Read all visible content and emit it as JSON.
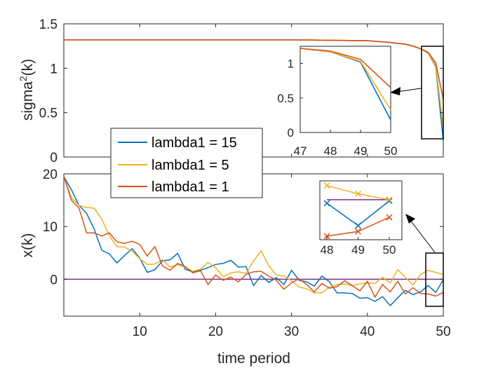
{
  "chart_data": [
    {
      "type": "line",
      "id": "top",
      "xlim": [
        0,
        50
      ],
      "ylim": [
        0,
        1.5
      ],
      "yticks": [
        0,
        0.5,
        1,
        1.5
      ],
      "ytick_labels": [
        "0",
        "0.5",
        "1",
        "1.5"
      ],
      "ylabel_base": "sigma",
      "ylabel_sup": "2",
      "ylabel_rest": "(k)",
      "series": [
        {
          "name": "lambda1 = 15",
          "color": "#0072BD",
          "x": [
            0,
            30,
            40,
            43,
            45,
            46,
            47,
            48,
            49,
            50
          ],
          "y": [
            1.32,
            1.32,
            1.31,
            1.29,
            1.27,
            1.25,
            1.22,
            1.17,
            1.02,
            0.18
          ]
        },
        {
          "name": "lambda1 = 5",
          "color": "#EDB120",
          "x": [
            0,
            30,
            40,
            43,
            45,
            46,
            47,
            48,
            49,
            50
          ],
          "y": [
            1.32,
            1.32,
            1.31,
            1.29,
            1.27,
            1.25,
            1.22,
            1.17,
            1.03,
            0.33
          ]
        },
        {
          "name": "lambda1 = 1",
          "color": "#D95319",
          "x": [
            0,
            30,
            40,
            43,
            45,
            46,
            47,
            48,
            49,
            50
          ],
          "y": [
            1.32,
            1.32,
            1.31,
            1.29,
            1.27,
            1.25,
            1.22,
            1.18,
            1.06,
            0.65
          ]
        }
      ],
      "inset": {
        "xlim": [
          47,
          50
        ],
        "ylim": [
          0,
          1.25
        ],
        "xticks": [
          47,
          48,
          49,
          50
        ],
        "xtick_labels": [
          "47",
          "48",
          "49",
          "50"
        ],
        "yticks": [
          0,
          0.5,
          1
        ],
        "ytick_labels": [
          "0",
          "0.5",
          "1"
        ]
      }
    },
    {
      "type": "line",
      "id": "bottom",
      "xlim": [
        0,
        50
      ],
      "ylim": [
        -7,
        20
      ],
      "xticks": [
        10,
        20,
        30,
        40,
        50
      ],
      "xtick_labels": [
        "10",
        "20",
        "30",
        "40",
        "50"
      ],
      "yticks": [
        0,
        10,
        20
      ],
      "ytick_labels": [
        "0",
        "10",
        "20"
      ],
      "ylabel": "x(k)",
      "xlabel": "time period",
      "reference": {
        "color": "#7E2F8E",
        "y": 0
      },
      "series": [
        {
          "name": "lambda1 = 15",
          "color": "#0072BD",
          "x": [
            0,
            1,
            2,
            3,
            4,
            5,
            6,
            7,
            8,
            9,
            10,
            11,
            12,
            13,
            14,
            15,
            16,
            17,
            18,
            19,
            20,
            21,
            22,
            23,
            24,
            25,
            26,
            27,
            28,
            29,
            30,
            31,
            32,
            33,
            34,
            35,
            36,
            37,
            38,
            39,
            40,
            41,
            42,
            43,
            44,
            45,
            46,
            47,
            48,
            49,
            50
          ],
          "y": [
            19.5,
            17,
            14,
            12.5,
            9.5,
            5.5,
            4.8,
            3.1,
            4.5,
            5.8,
            4,
            1.3,
            1.8,
            3.5,
            3.7,
            4.9,
            1.9,
            1.4,
            1.7,
            2.2,
            2.8,
            3,
            3.6,
            2.3,
            2.4,
            -1.2,
            0.7,
            -0.6,
            0.3,
            -1,
            1.7,
            -0.2,
            -0.5,
            -1.3,
            0.6,
            -0.5,
            -2.6,
            -2.6,
            -2.7,
            -3.6,
            -3.5,
            -4.2,
            -3.3,
            -5,
            -3.5,
            -2.1,
            -2.9,
            -2.4,
            -1.2,
            -2.5,
            -0.1
          ]
        },
        {
          "name": "lambda1 = 5",
          "color": "#EDB120",
          "x": [
            0,
            1,
            2,
            3,
            4,
            5,
            6,
            7,
            8,
            9,
            10,
            11,
            12,
            13,
            14,
            15,
            16,
            17,
            18,
            19,
            20,
            21,
            22,
            23,
            24,
            25,
            26,
            27,
            28,
            29,
            30,
            31,
            32,
            33,
            34,
            35,
            36,
            37,
            38,
            39,
            40,
            41,
            42,
            43,
            44,
            45,
            46,
            47,
            48,
            49,
            50
          ],
          "y": [
            19.5,
            15.5,
            14,
            13.6,
            13.5,
            11.4,
            8.3,
            6.2,
            6.1,
            5.3,
            3.9,
            2.8,
            2.9,
            3.7,
            2.3,
            2.8,
            2.3,
            1.5,
            1.9,
            3.2,
            2.2,
            0.5,
            1.2,
            1.4,
            1.1,
            3.5,
            5.4,
            2.6,
            0.8,
            0.6,
            -0.3,
            -1.5,
            -1.8,
            -2.6,
            -2.6,
            -1.5,
            -1,
            -0.9,
            -1.2,
            -0.9,
            -0.7,
            -0.8,
            0.4,
            -0.7,
            1.8,
            0.4,
            -1.1,
            0.9,
            1.7,
            1.3,
            0.9
          ]
        },
        {
          "name": "lambda1 = 1",
          "color": "#D95319",
          "x": [
            0,
            1,
            2,
            3,
            4,
            5,
            6,
            7,
            8,
            9,
            10,
            11,
            12,
            13,
            14,
            15,
            16,
            17,
            18,
            19,
            20,
            21,
            22,
            23,
            24,
            25,
            26,
            27,
            28,
            29,
            30,
            31,
            32,
            33,
            34,
            35,
            36,
            37,
            38,
            39,
            40,
            41,
            42,
            43,
            44,
            45,
            46,
            47,
            48,
            49,
            50
          ],
          "y": [
            19.5,
            15,
            13.5,
            8.8,
            8.8,
            8.2,
            8.8,
            7.1,
            6.8,
            7.2,
            6.6,
            4.4,
            6.2,
            2.5,
            1.7,
            3,
            2.4,
            1.2,
            1.6,
            -1,
            0.8,
            -0.2,
            0.4,
            -0.5,
            0.9,
            1.4,
            1.5,
            0.6,
            -0.2,
            -1.9,
            -0.7,
            0.1,
            -1,
            -2.4,
            -0.8,
            -1.7,
            -1.4,
            -0.3,
            -1.2,
            -2.2,
            -0.4,
            -3.4,
            -1,
            -2.4,
            -0.4,
            -2.8,
            -1.6,
            -2.7,
            -2.8,
            -3.2,
            -2.5
          ]
        }
      ],
      "inset": {
        "xlim": [
          48,
          50
        ],
        "xticks": [
          48,
          49,
          50
        ],
        "xtick_labels": [
          "48",
          "49",
          "50"
        ],
        "markers": {
          "lambda1 = 5": [
            2.2,
            1.5,
            1.0
          ],
          "lambda1 = 15": [
            0.7,
            -1.2,
            0.9
          ],
          "lambda1 = 1": [
            -2.1,
            -1.7,
            -0.5
          ]
        },
        "ylim": [
          -2.4,
          2.6
        ],
        "purple_y": 1.0
      }
    }
  ],
  "legend": {
    "entries": [
      {
        "label": "lambda1 = 15",
        "color": "#0072BD"
      },
      {
        "label": "lambda1 = 5",
        "color": "#EDB120"
      },
      {
        "label": "lambda1 = 1",
        "color": "#D95319"
      }
    ]
  }
}
